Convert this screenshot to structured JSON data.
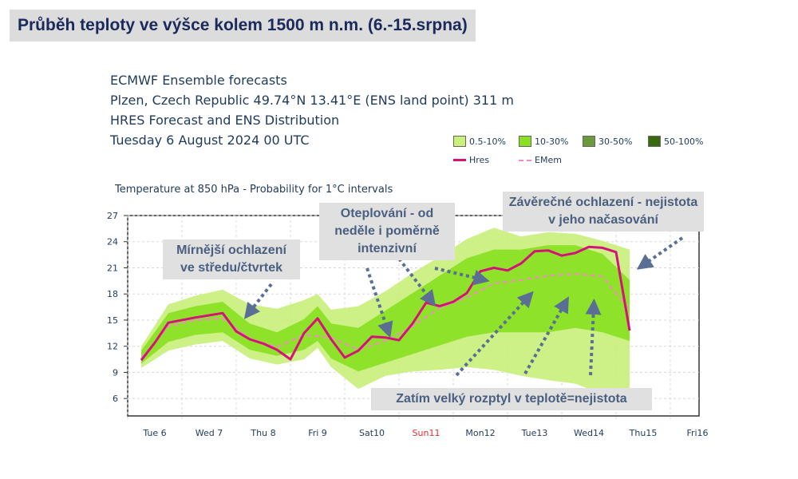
{
  "header": {
    "title": "Průběh teploty ve výšce kolem 1500 m n.m. (6.-15.srpna)"
  },
  "info": {
    "line1": "ECMWF Ensemble forecasts",
    "line2": "Plzen, Czech Republic 49.74°N 13.41°E (ENS land point) 311 m",
    "line3": "HRES Forecast and ENS Distribution",
    "line4": "Tuesday  6 August 2024 00 UTC"
  },
  "legend": {
    "items": [
      {
        "label": "0.5-10%",
        "color": "#c8f07a"
      },
      {
        "label": "10-30%",
        "color": "#88e020"
      },
      {
        "label": "30-50%",
        "color": "#6a9a3a"
      },
      {
        "label": "50-100%",
        "color": "#3a6a10"
      }
    ],
    "hres_label": "Hres",
    "emem_label": "EMem",
    "hres_color": "#d6127a",
    "emem_color": "#f08cc0"
  },
  "annotations": {
    "cooling_wed_thu": "Mírnější ochlazení ve středu/čtvrtek",
    "warming_sunday": "Oteplování - od neděle i poměrně intenzivní",
    "final_cooling": "Závěrečné ochlazení - nejistota v jeho načasování",
    "spread": "Zatím velký rozptyl v teplotě=nejistota"
  },
  "chart_data": {
    "type": "line",
    "subtitle": "Temperature at 850 hPa - Probability for 1°C intervals",
    "x_ticks": [
      "Tue 6",
      "Wed 7",
      "Thu 8",
      "Fri 9",
      "Sat10",
      "Sun11",
      "Mon12",
      "Tue13",
      "Wed14",
      "Thu15",
      "Fri16"
    ],
    "highlight_tick": "Sun11",
    "highlight_color": "#e03030",
    "x_range_days": [
      0,
      10
    ],
    "ylim": [
      4,
      27
    ],
    "y_ticks": [
      6,
      9,
      12,
      15,
      18,
      21,
      24,
      27
    ],
    "series": [
      {
        "name": "Hres",
        "x_days": [
          0,
          0.25,
          0.5,
          1.0,
          1.5,
          1.75,
          2.0,
          2.25,
          2.5,
          2.75,
          3.0,
          3.25,
          3.5,
          3.75,
          4.0,
          4.25,
          4.5,
          4.75,
          5.0,
          5.25,
          5.5,
          5.75,
          6.0,
          6.25,
          6.5,
          6.75,
          7.0,
          7.25,
          7.5,
          7.75,
          8.0,
          8.25,
          8.5,
          8.75,
          9.0
        ],
        "values": [
          10.4,
          12.4,
          14.7,
          15.3,
          15.8,
          13.7,
          12.8,
          12.3,
          11.6,
          10.5,
          13.5,
          15.2,
          12.8,
          10.7,
          11.5,
          13.1,
          13.0,
          12.7,
          14.6,
          17.0,
          16.6,
          17.1,
          18.1,
          20.6,
          21.0,
          20.7,
          21.5,
          22.9,
          23.0,
          22.4,
          22.7,
          23.4,
          23.3,
          22.8,
          13.8
        ]
      },
      {
        "name": "EMem",
        "x_days": [
          0,
          0.5,
          1.0,
          1.5,
          2.0,
          2.5,
          3.0,
          3.5,
          4.0,
          4.5,
          5.0,
          5.5,
          6.0,
          6.5,
          7.0,
          7.5,
          8.0,
          8.5,
          9.0
        ],
        "values": [
          10.6,
          14.3,
          15.0,
          15.2,
          12.9,
          11.9,
          13.3,
          13.0,
          11.6,
          12.6,
          14.3,
          16.4,
          17.6,
          19.2,
          19.6,
          20.1,
          20.3,
          20.0,
          16.2
        ]
      }
    ],
    "bands": [
      {
        "level": "0.5-10%",
        "x_days": [
          0,
          0.5,
          1.0,
          1.5,
          2.0,
          2.5,
          3.0,
          3.25,
          3.5,
          4.0,
          4.5,
          5.0,
          5.5,
          6.0,
          6.5,
          7.0,
          7.5,
          8.0,
          8.5,
          9.0
        ],
        "low": [
          9.5,
          11.5,
          12.2,
          12.6,
          10.6,
          9.9,
          10.5,
          11.8,
          9.6,
          7.1,
          8.6,
          9.1,
          9.3,
          9.6,
          9.3,
          8.6,
          8.1,
          7.7,
          6.5,
          6.5
        ],
        "high": [
          12.0,
          16.8,
          17.8,
          18.5,
          16.8,
          16.3,
          17.3,
          18.0,
          16.2,
          16.6,
          18.3,
          20.4,
          22.3,
          24.3,
          25.6,
          24.6,
          25.1,
          24.9,
          24.1,
          23.1
        ]
      },
      {
        "level": "10-30%",
        "x_days": [
          0,
          0.5,
          1.0,
          1.5,
          2.0,
          2.5,
          3.0,
          3.25,
          3.5,
          4.0,
          4.5,
          5.0,
          5.5,
          6.0,
          6.5,
          7.0,
          7.5,
          8.0,
          8.5,
          9.0
        ],
        "low": [
          10.0,
          12.5,
          13.3,
          13.6,
          11.6,
          10.9,
          11.6,
          12.6,
          10.6,
          9.1,
          10.1,
          11.1,
          12.1,
          13.1,
          13.6,
          13.6,
          13.6,
          14.1,
          13.6,
          12.6
        ],
        "high": [
          11.5,
          15.8,
          16.6,
          17.1,
          14.6,
          13.6,
          15.1,
          16.6,
          14.6,
          14.1,
          16.1,
          18.1,
          20.1,
          22.1,
          23.1,
          23.1,
          23.6,
          23.6,
          22.6,
          19.6
        ]
      }
    ]
  }
}
